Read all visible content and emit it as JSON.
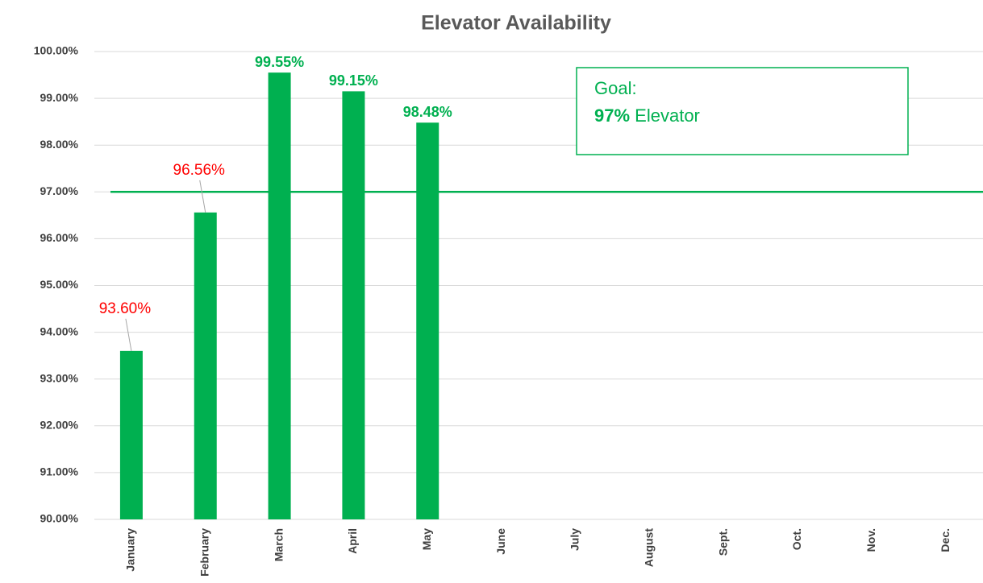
{
  "chart_data": {
    "type": "bar",
    "title": "Elevator Availability",
    "categories": [
      "January",
      "February",
      "March",
      "April",
      "May",
      "June",
      "July",
      "August",
      "Sept.",
      "Oct.",
      "Nov.",
      "Dec."
    ],
    "values": [
      93.6,
      96.56,
      99.55,
      99.15,
      98.48,
      null,
      null,
      null,
      null,
      null,
      null,
      null
    ],
    "value_labels": [
      "93.60%",
      "96.56%",
      "99.55%",
      "99.15%",
      "98.48%",
      null,
      null,
      null,
      null,
      null,
      null,
      null
    ],
    "color": "#00b050",
    "below_goal_label_color": "#ff0000",
    "goal_line": 97,
    "goal_color": "#00b050",
    "annotation": {
      "title": "Goal:",
      "value_text": "97%",
      "text": "Elevator"
    },
    "ylim": [
      90,
      100
    ],
    "yticks": [
      {
        "value": 90,
        "label": "90.00%"
      },
      {
        "value": 91,
        "label": "91.00%"
      },
      {
        "value": 92,
        "label": "92.00%"
      },
      {
        "value": 93,
        "label": "93.00%"
      },
      {
        "value": 94,
        "label": "94.00%"
      },
      {
        "value": 95,
        "label": "95.00%"
      },
      {
        "value": 96,
        "label": "96.00%"
      },
      {
        "value": 97,
        "label": "97.00%"
      },
      {
        "value": 98,
        "label": "98.00%"
      },
      {
        "value": 99,
        "label": "99.00%"
      },
      {
        "value": 100,
        "label": "100.00%"
      }
    ],
    "grid": true
  }
}
